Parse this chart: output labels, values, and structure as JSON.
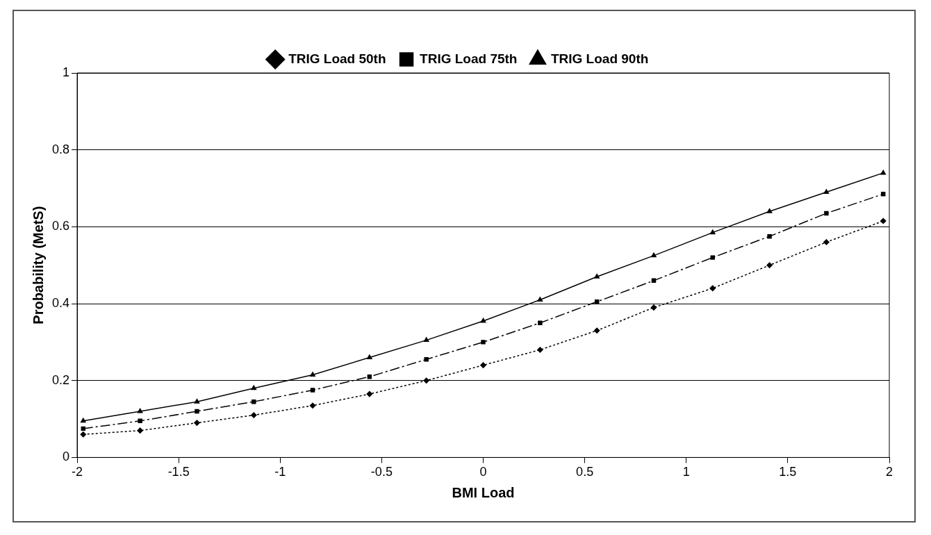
{
  "chart_data": {
    "type": "line",
    "xlabel": "BMI Load",
    "ylabel": "Probability (MetS)",
    "x": [
      -1.97,
      -1.69,
      -1.41,
      -1.13,
      -0.84,
      -0.56,
      -0.28,
      0,
      0.28,
      0.56,
      0.84,
      1.13,
      1.41,
      1.69,
      1.97
    ],
    "series": [
      {
        "name": "TRIG Load 50th",
        "color": "#000000",
        "marker": "diamond",
        "line_style": "dotted",
        "values": [
          0.06,
          0.07,
          0.09,
          0.11,
          0.135,
          0.165,
          0.2,
          0.24,
          0.28,
          0.33,
          0.39,
          0.44,
          0.5,
          0.56,
          0.615
        ]
      },
      {
        "name": "TRIG Load 75th",
        "color": "#000000",
        "marker": "square",
        "line_style": "dashed",
        "values": [
          0.075,
          0.095,
          0.12,
          0.145,
          0.175,
          0.21,
          0.255,
          0.3,
          0.35,
          0.405,
          0.46,
          0.52,
          0.575,
          0.635,
          0.685
        ]
      },
      {
        "name": "TRIG Load 90th",
        "color": "#000000",
        "marker": "triangle",
        "line_style": "solid",
        "values": [
          0.095,
          0.12,
          0.145,
          0.18,
          0.215,
          0.26,
          0.305,
          0.355,
          0.41,
          0.47,
          0.525,
          0.585,
          0.64,
          0.69,
          0.74
        ]
      }
    ],
    "xlim": [
      -2,
      2
    ],
    "xticks": [
      -2,
      -1.5,
      -1,
      -0.5,
      0,
      0.5,
      1,
      1.5,
      2
    ],
    "ylim": [
      0,
      1
    ],
    "yticks": [
      0,
      0.2,
      0.4,
      0.6,
      0.8,
      1
    ],
    "grid": "y",
    "legend": "top"
  }
}
